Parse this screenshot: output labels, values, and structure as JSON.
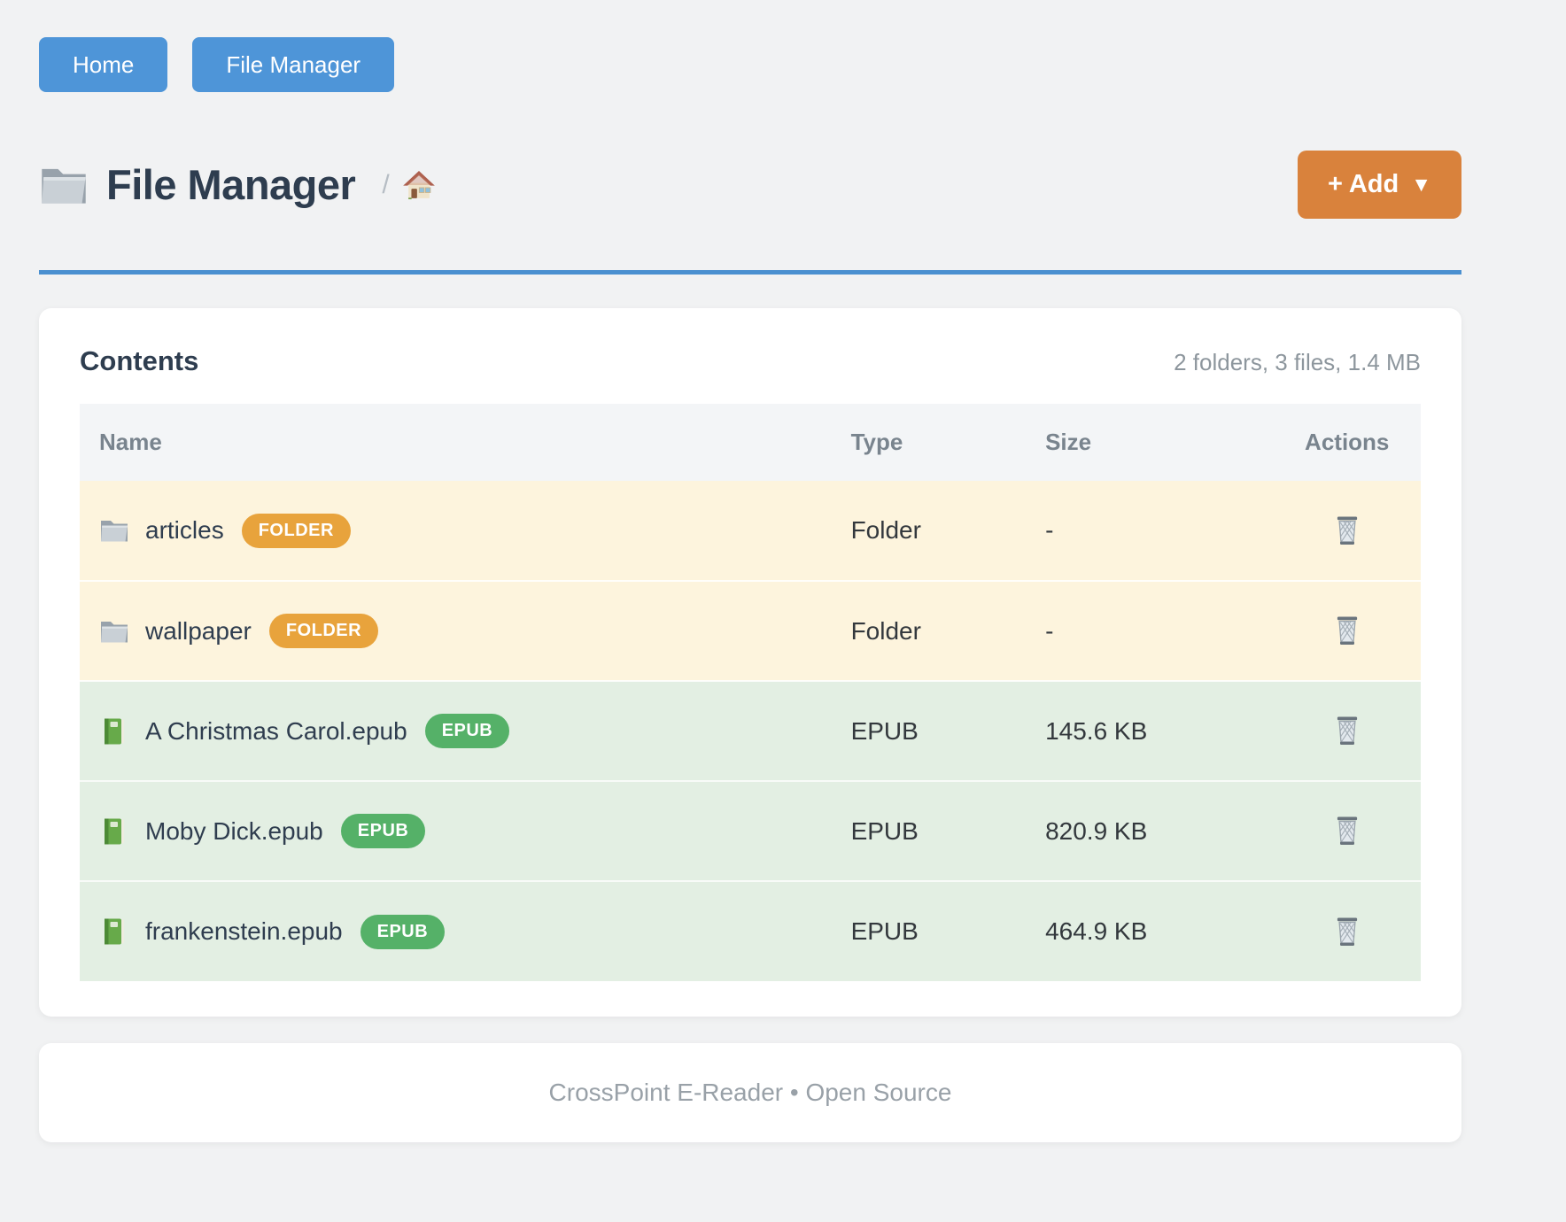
{
  "nav": {
    "items": [
      {
        "label": "Home"
      },
      {
        "label": "File Manager"
      }
    ]
  },
  "header": {
    "title_icon": "folder-icon",
    "title": "File Manager",
    "breadcrumb_separator": "/",
    "breadcrumb_home_icon": "house-icon",
    "add_button": {
      "label": "+ Add",
      "caret": "▼"
    }
  },
  "card": {
    "title": "Contents",
    "summary": "2 folders, 3 files, 1.4 MB",
    "table": {
      "headers": {
        "name": "Name",
        "type": "Type",
        "size": "Size",
        "actions": "Actions"
      },
      "rows": [
        {
          "icon": "folder-icon",
          "name": "articles",
          "badge": "FOLDER",
          "type": "Folder",
          "size": "-",
          "action_icon": "trash-icon"
        },
        {
          "icon": "folder-icon",
          "name": "wallpaper",
          "badge": "FOLDER",
          "type": "Folder",
          "size": "-",
          "action_icon": "trash-icon"
        },
        {
          "icon": "book-icon",
          "name": "A Christmas Carol.epub",
          "badge": "EPUB",
          "type": "EPUB",
          "size": "145.6 KB",
          "action_icon": "trash-icon"
        },
        {
          "icon": "book-icon",
          "name": "Moby Dick.epub",
          "badge": "EPUB",
          "type": "EPUB",
          "size": "820.9 KB",
          "action_icon": "trash-icon"
        },
        {
          "icon": "book-icon",
          "name": "frankenstein.epub",
          "badge": "EPUB",
          "type": "EPUB",
          "size": "464.9 KB",
          "action_icon": "trash-icon"
        }
      ]
    }
  },
  "footer": {
    "text": "CrossPoint E-Reader • Open Source"
  },
  "colors": {
    "nav_button": "#4e95d8",
    "add_button": "#d9823c",
    "divider": "#4a90d0",
    "badge_folder": "#e8a33c",
    "badge_epub": "#55b168",
    "row_folder_bg": "#fdf4dd",
    "row_file_bg": "#e3efe3",
    "title_text": "#2e3d4f",
    "page_bg": "#f1f2f3"
  }
}
